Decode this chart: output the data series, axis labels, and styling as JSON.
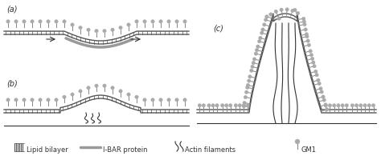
{
  "bg_color": "#ffffff",
  "line_color": "#333333",
  "membrane_color": "#555555",
  "lipid_color": "#888888",
  "gm1_color": "#aaaaaa",
  "ibar_color": "#999999",
  "actin_color": "#333333",
  "label_a": "(a)",
  "label_b": "(b)",
  "label_c": "(c)",
  "legend_lipid": "Lipid bilayer",
  "legend_ibar": "I-BAR protein",
  "legend_actin": "Actin filaments",
  "legend_gm1": "GM1",
  "fig_width": 4.74,
  "fig_height": 2.01,
  "dpi": 100
}
